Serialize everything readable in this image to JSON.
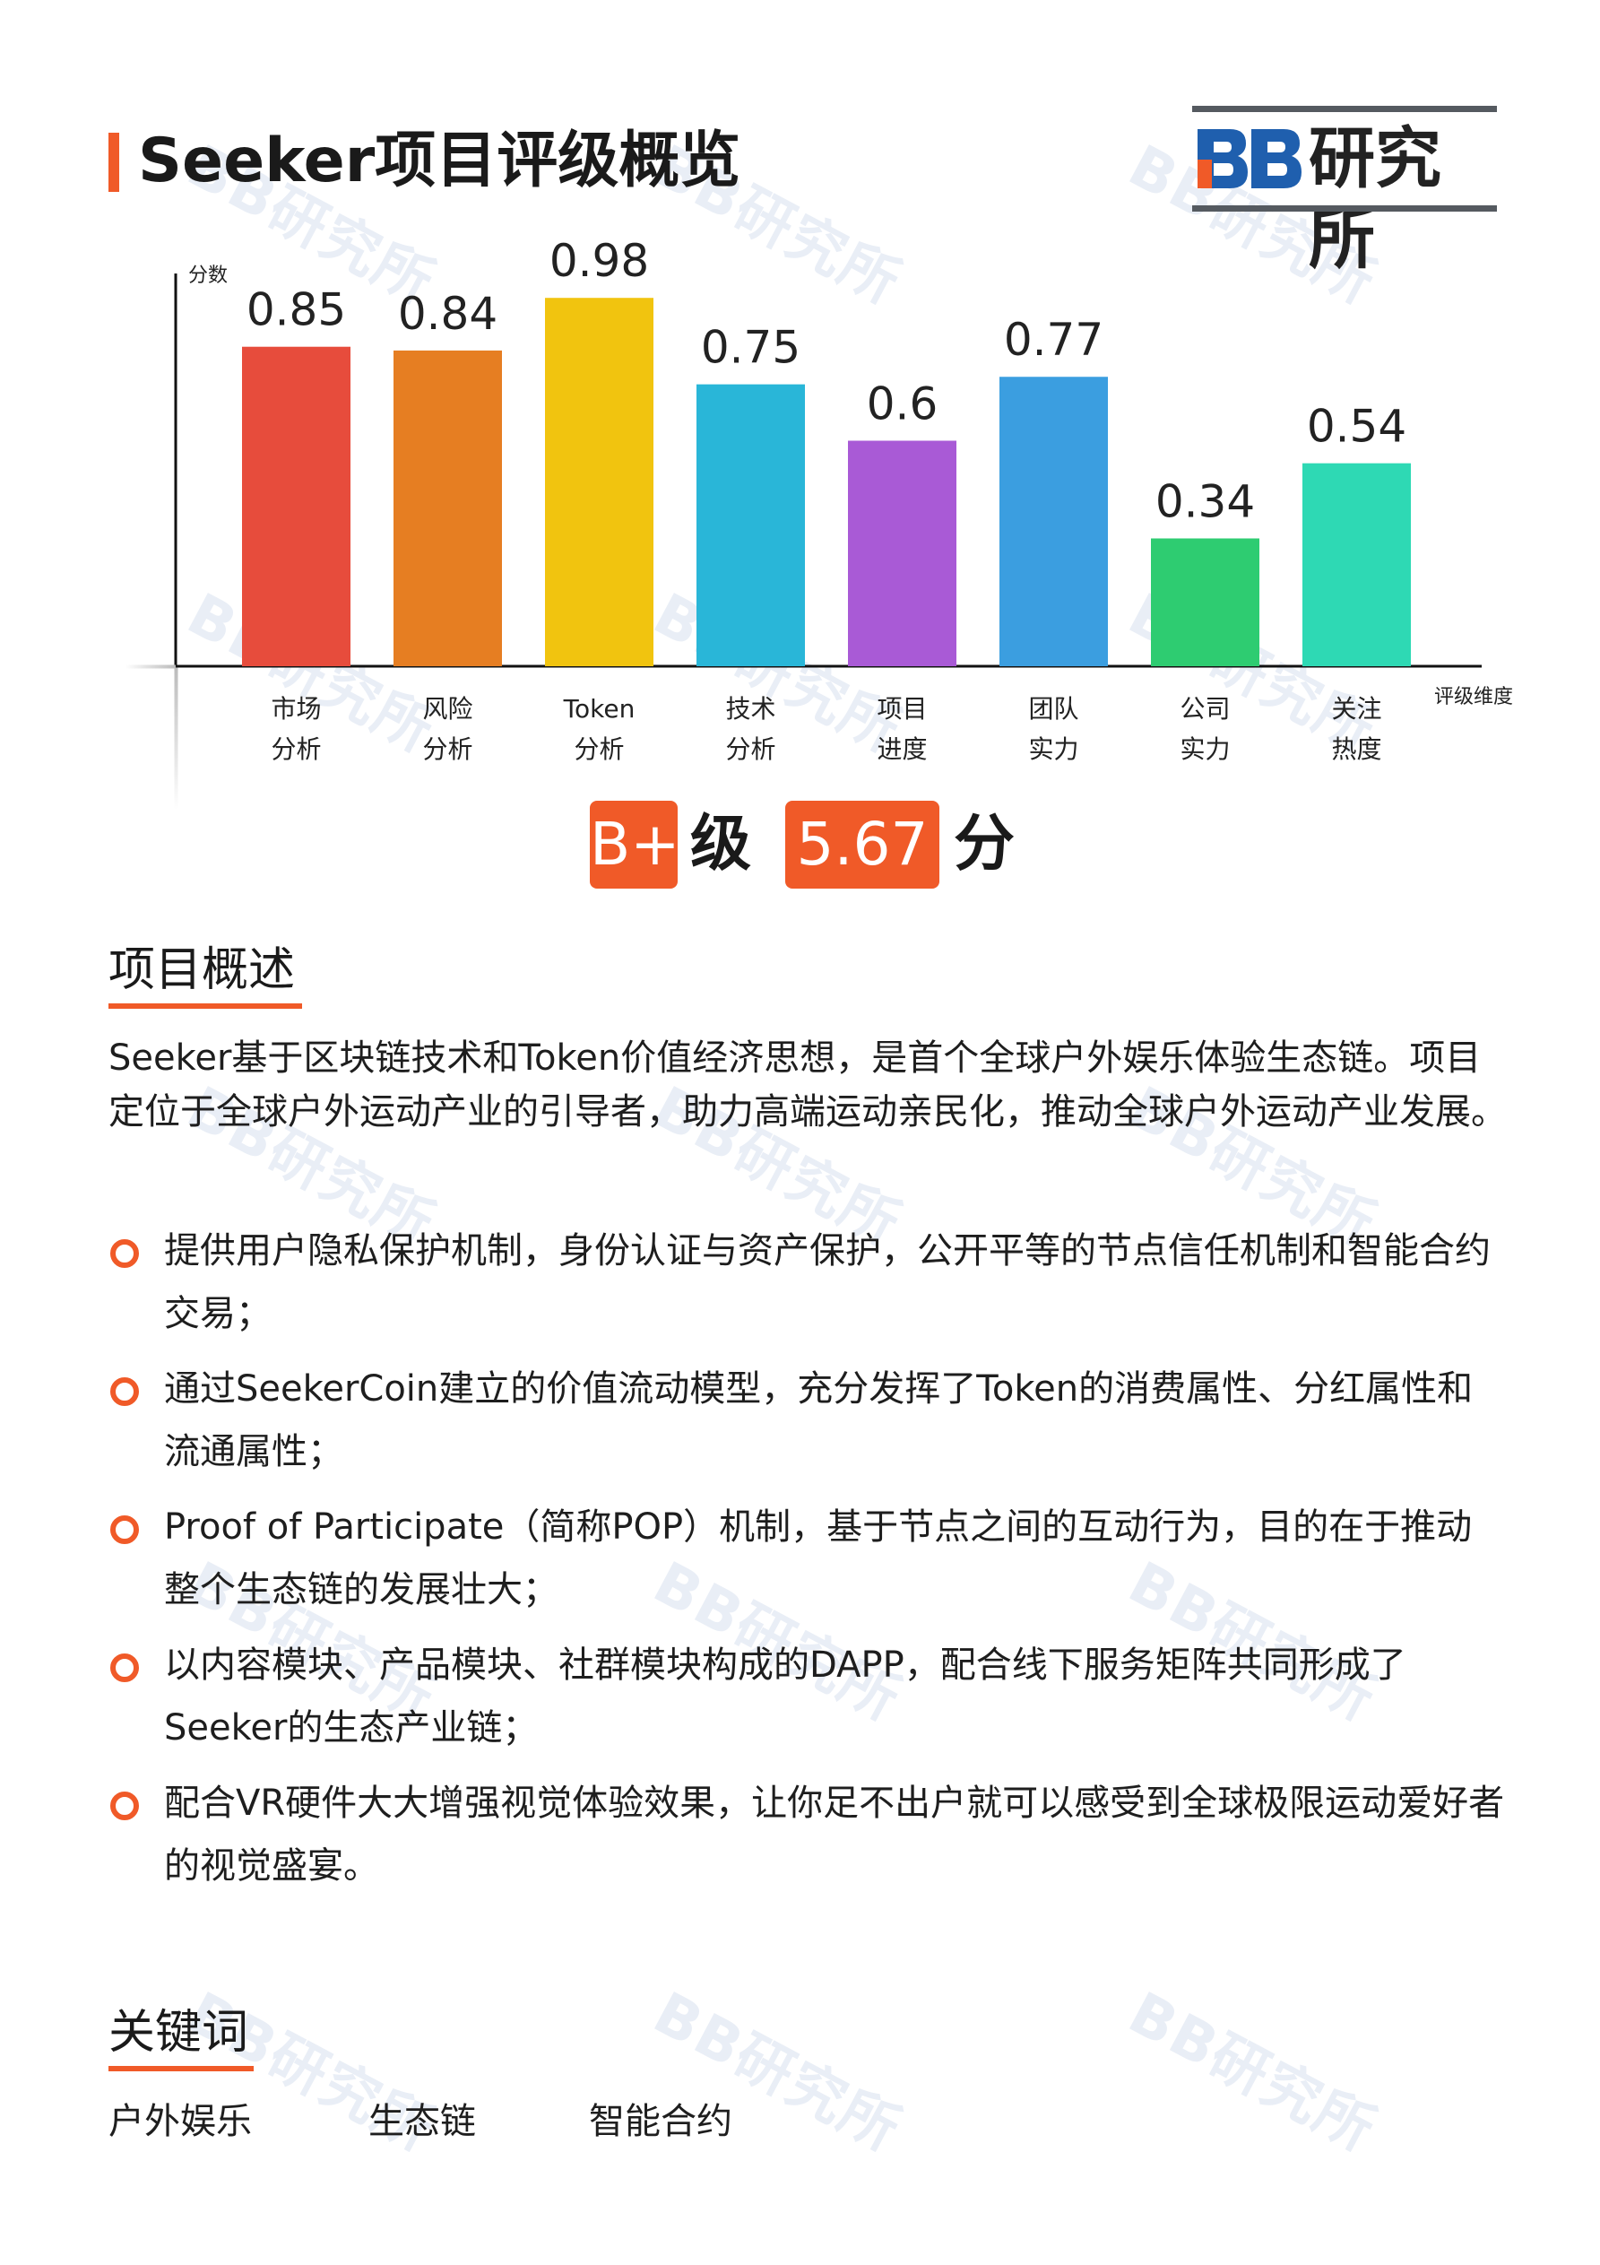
{
  "header": {
    "title": "Seeker项目评级概览",
    "logo_mark": "BB",
    "logo_text": "研究所"
  },
  "watermark": {
    "text": "BB研究所"
  },
  "colors": {
    "accent": "#f05a28",
    "bars": [
      "#e74c3c",
      "#e67e22",
      "#f1c40f",
      "#29b6d8",
      "#a95ad6",
      "#3b9ee0",
      "#2ecc71",
      "#2ed9b4"
    ]
  },
  "chart_data": {
    "type": "bar",
    "ylabel": "分数",
    "xlabel": "评级维度",
    "categories": [
      [
        "市场",
        "分析"
      ],
      [
        "风险",
        "分析"
      ],
      [
        "Token",
        "分析"
      ],
      [
        "技术",
        "分析"
      ],
      [
        "项目",
        "进度"
      ],
      [
        "团队",
        "实力"
      ],
      [
        "公司",
        "实力"
      ],
      [
        "关注",
        "热度"
      ]
    ],
    "values": [
      0.85,
      0.84,
      0.98,
      0.75,
      0.6,
      0.77,
      0.34,
      0.54
    ],
    "value_labels": [
      "0.85",
      "0.84",
      "0.98",
      "0.75",
      "0.6",
      "0.77",
      "0.34",
      "0.54"
    ],
    "ylim": [
      0,
      1.2
    ],
    "grid": false,
    "legend": "none"
  },
  "rating": {
    "grade": "B+",
    "grade_suffix": "级",
    "score": "5.67",
    "score_suffix": "分"
  },
  "overview": {
    "heading": "项目概述",
    "intro": "Seeker基于区块链技术和Token价值经济思想，是首个全球户外娱乐体验生态链。项目定位于全球户外运动产业的引导者，助力高端运动亲民化，推动全球户外运动产业发展。",
    "bullets": [
      "提供用户隐私保护机制，身份认证与资产保护，公开平等的节点信任机制和智能合约交易；",
      "通过SeekerCoin建立的价值流动模型，充分发挥了Token的消费属性、分红属性和流通属性；",
      "Proof of Participate（简称POP）机制，基于节点之间的互动行为，目的在于推动整个生态链的发展壮大；",
      "以内容模块、产品模块、社群模块构成的DAPP，配合线下服务矩阵共同形成了Seeker的生态产业链；",
      "配合VR硬件大大增强视觉体验效果，让你足不出户就可以感受到全球极限运动爱好者的视觉盛宴。"
    ]
  },
  "keywords": {
    "heading": "关键词",
    "items": [
      "户外娱乐",
      "生态链",
      "智能合约"
    ]
  }
}
